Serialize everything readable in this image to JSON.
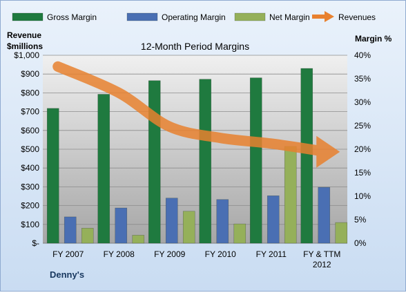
{
  "colors": {
    "background_top": "#eaf2fb",
    "background_bottom": "#c9dcf2",
    "plot_top": "#f0f0f0",
    "plot_bottom": "#a6a6a6",
    "gross": "#1f7a3f",
    "operating": "#4a6fb3",
    "net": "#95b05a",
    "revenues": "#e8812f"
  },
  "chart_data": {
    "type": "bar",
    "title": "12-Month Period Margins",
    "company": "Denny's",
    "left_axis_title": [
      "Revenue",
      "$millions"
    ],
    "right_axis_title": "Margin %",
    "categories": [
      [
        "FY 2007"
      ],
      [
        "FY 2008"
      ],
      [
        "FY 2009"
      ],
      [
        "FY 2010"
      ],
      [
        "FY 2011"
      ],
      [
        "FY & TTM",
        "2012"
      ]
    ],
    "left_axis": {
      "min": 0,
      "max": 1000,
      "step": 100,
      "ticks": [
        "$-",
        "$100",
        "$200",
        "$300",
        "$400",
        "$500",
        "$600",
        "$700",
        "$800",
        "$900",
        "$1,000"
      ]
    },
    "right_axis": {
      "min": 0,
      "max": 40,
      "step": 5,
      "ticks": [
        "0%",
        "5%",
        "10%",
        "15%",
        "20%",
        "25%",
        "30%",
        "35%",
        "40%"
      ]
    },
    "legend_position": "top",
    "series": [
      {
        "name": "Gross Margin",
        "kind": "bar",
        "axis": "right",
        "color_key": "gross",
        "values": [
          28.7,
          31.7,
          34.6,
          34.9,
          35.2,
          37.2
        ]
      },
      {
        "name": "Operating Margin",
        "kind": "bar",
        "axis": "right",
        "color_key": "operating",
        "values": [
          5.6,
          7.5,
          9.6,
          9.3,
          10.1,
          11.9
        ]
      },
      {
        "name": "Net Margin",
        "kind": "bar",
        "axis": "right",
        "color_key": "net",
        "values": [
          3.2,
          1.7,
          6.8,
          4.1,
          20.6,
          4.4
        ]
      },
      {
        "name": "Revenues",
        "kind": "line-arrow",
        "axis": "left",
        "color_key": "revenues",
        "values": [
          940,
          800,
          620,
          560,
          530,
          490
        ]
      }
    ]
  }
}
